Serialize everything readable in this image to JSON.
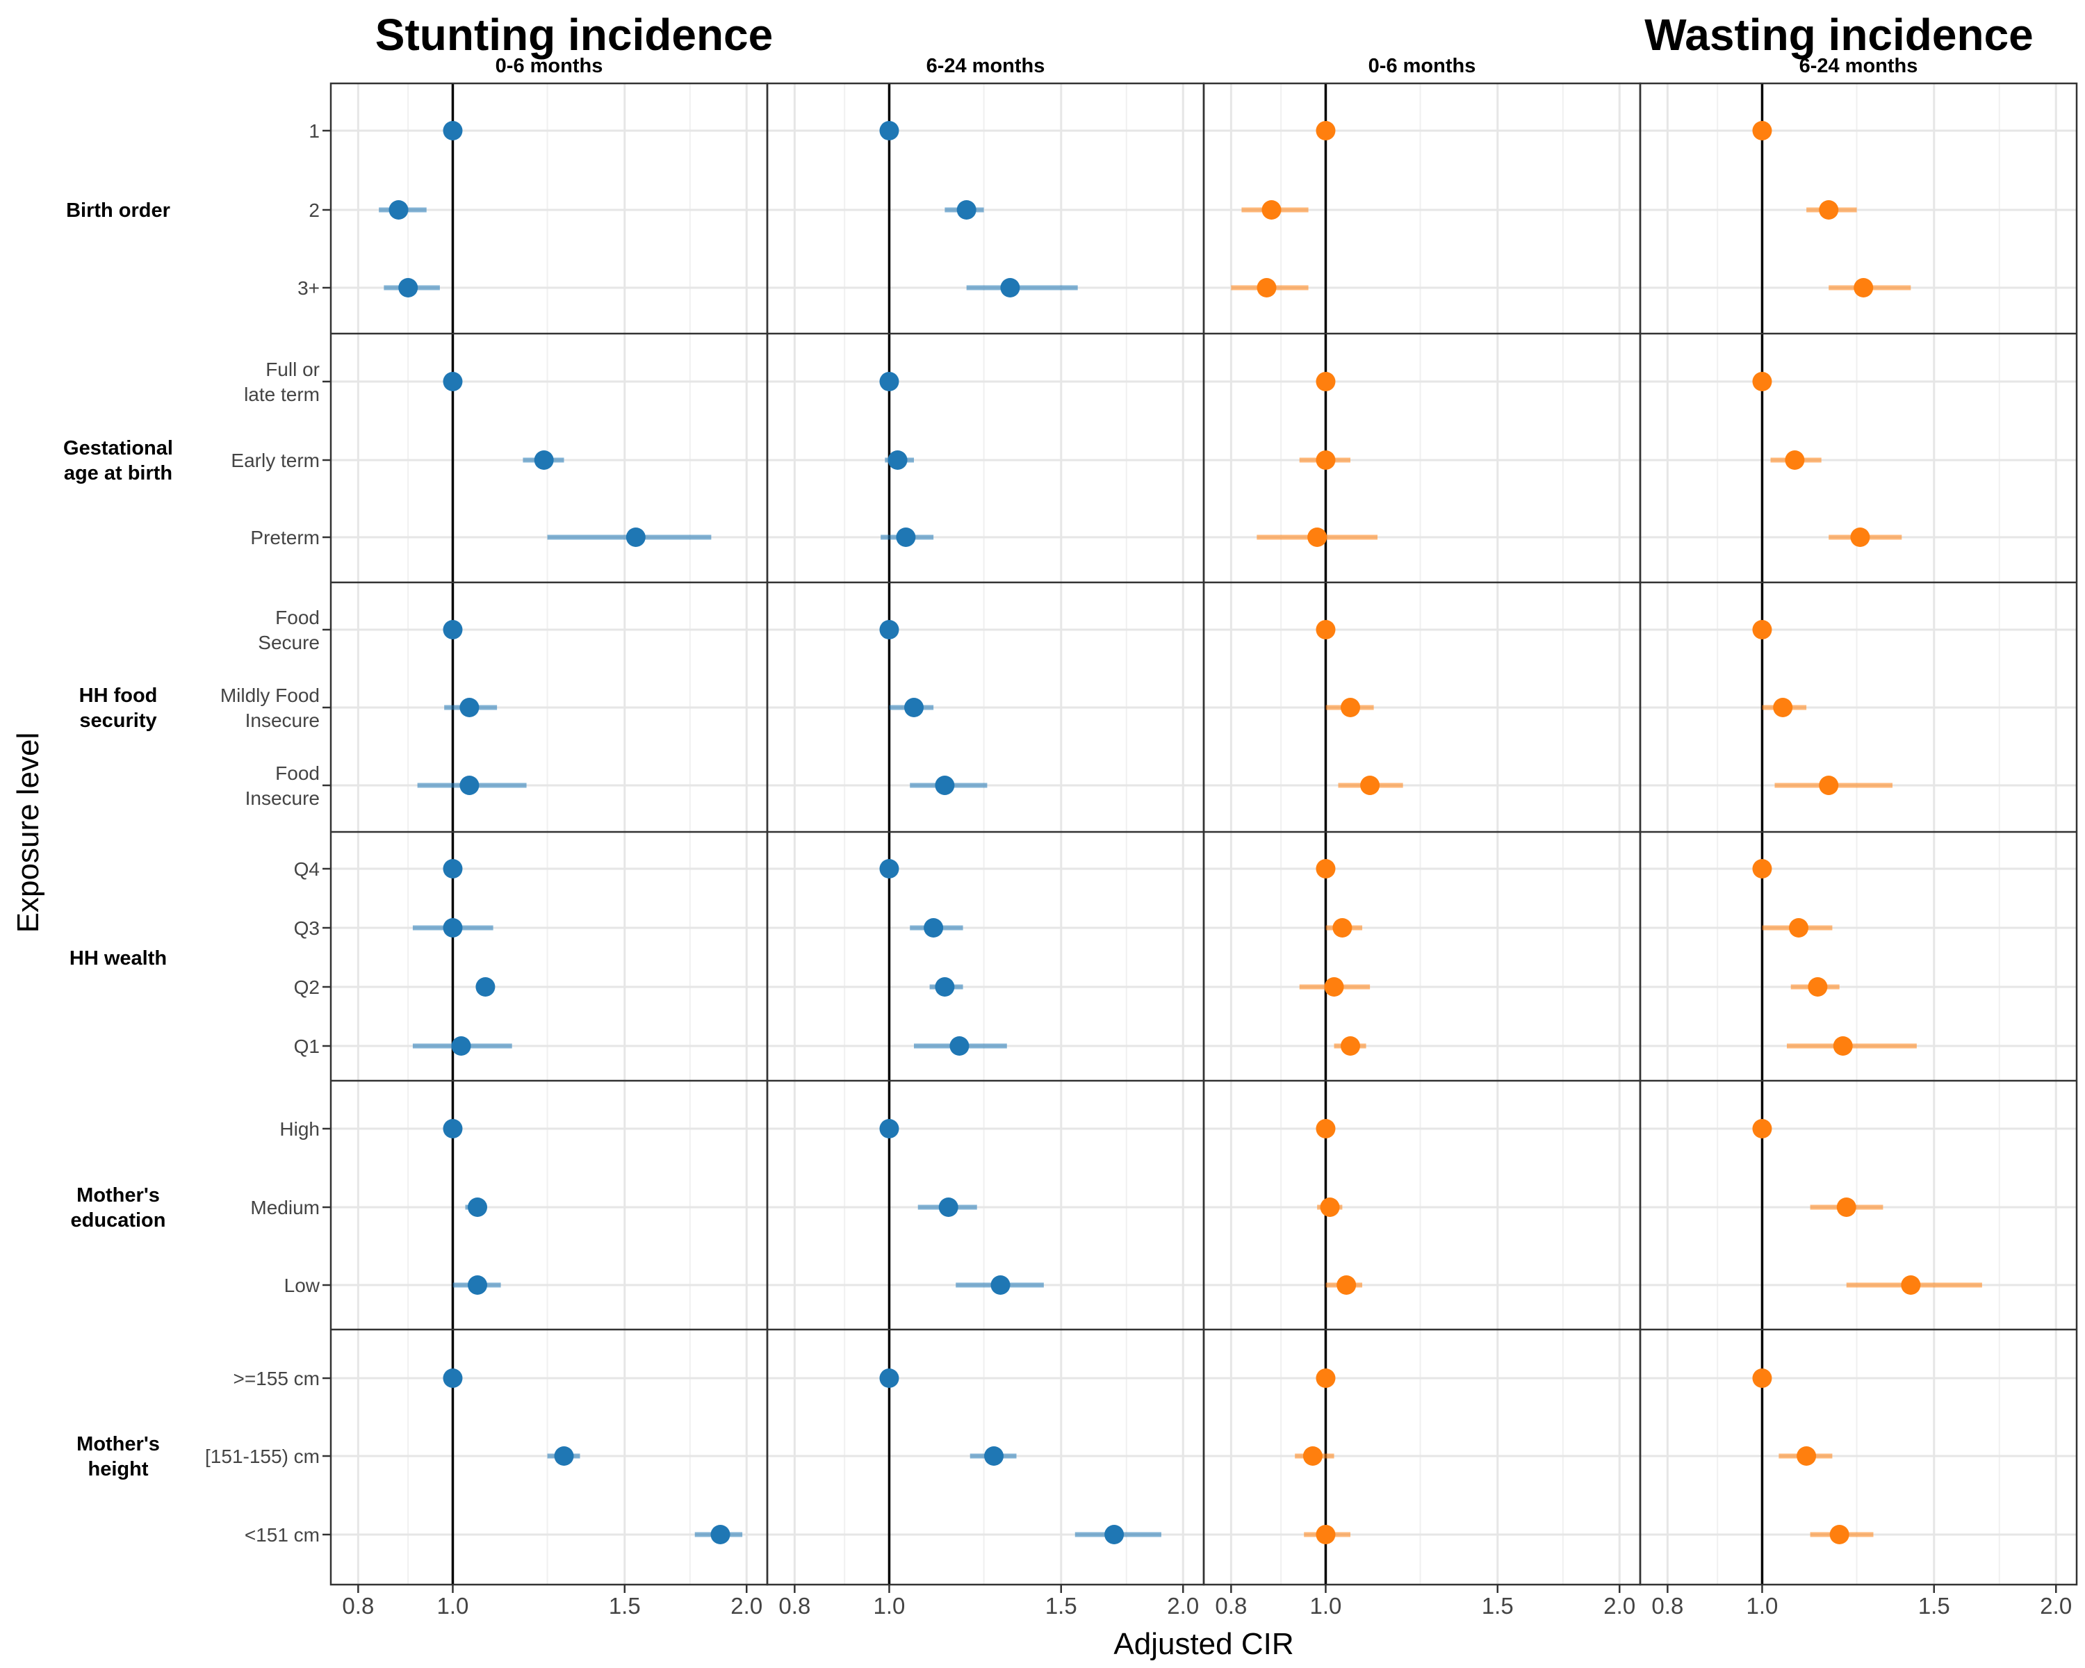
{
  "chart_data": {
    "type": "scatter",
    "subtype": "forest-plot",
    "titles": [
      "Stunting incidence",
      "Wasting incidence"
    ],
    "xlabel": "Adjusted CIR",
    "ylabel": "Exposure level",
    "x_scale": "log",
    "xlim": [
      0.75,
      2.1
    ],
    "x_ticks": [
      0.8,
      1.0,
      1.5,
      2.0
    ],
    "x_tick_labels": [
      "0.8",
      "1.0",
      "1.5",
      "2.0"
    ],
    "reference_line_x": 1.0,
    "grid": true,
    "colors": {
      "stunting": "#1f77b4",
      "wasting": "#ff7f0e",
      "ref_line": "#000000"
    },
    "panels": [
      {
        "outcome": "Stunting incidence",
        "age": "0-6 months",
        "color": "#1f77b4"
      },
      {
        "outcome": "Stunting incidence",
        "age": "6-24 months",
        "color": "#1f77b4"
      },
      {
        "outcome": "Wasting incidence",
        "age": "0-6 months",
        "color": "#ff7f0e"
      },
      {
        "outcome": "Wasting incidence",
        "age": "6-24 months",
        "color": "#ff7f0e"
      }
    ],
    "groups": [
      {
        "name": "Birth order",
        "levels": [
          {
            "label": [
              "1"
            ],
            "est": [
              [
                1.0,
                1.0,
                1.0
              ],
              [
                1.0,
                1.0,
                1.0
              ],
              [
                1.0,
                1.0,
                1.0
              ],
              [
                1.0,
                1.0,
                1.0
              ]
            ]
          },
          {
            "label": [
              "2"
            ],
            "est": [
              [
                0.88,
                0.84,
                0.94
              ],
              [
                1.2,
                1.14,
                1.25
              ],
              [
                0.88,
                0.82,
                0.96
              ],
              [
                1.17,
                1.11,
                1.25
              ]
            ]
          },
          {
            "label": [
              "3+"
            ],
            "est": [
              [
                0.9,
                0.85,
                0.97
              ],
              [
                1.33,
                1.2,
                1.56
              ],
              [
                0.87,
                0.8,
                0.96
              ],
              [
                1.27,
                1.17,
                1.42
              ]
            ]
          }
        ]
      },
      {
        "name": "Gestational age at birth",
        "levels": [
          {
            "label": [
              "Full or",
              "late term"
            ],
            "est": [
              [
                1.0,
                1.0,
                1.0
              ],
              [
                1.0,
                1.0,
                1.0
              ],
              [
                1.0,
                1.0,
                1.0
              ],
              [
                1.0,
                1.0,
                1.0
              ]
            ]
          },
          {
            "label": [
              "Early term"
            ],
            "est": [
              [
                1.24,
                1.18,
                1.3
              ],
              [
                1.02,
                0.99,
                1.06
              ],
              [
                1.0,
                0.94,
                1.06
              ],
              [
                1.08,
                1.02,
                1.15
              ]
            ]
          },
          {
            "label": [
              "Preterm"
            ],
            "est": [
              [
                1.54,
                1.25,
                1.84
              ],
              [
                1.04,
                0.98,
                1.11
              ],
              [
                0.98,
                0.85,
                1.13
              ],
              [
                1.26,
                1.17,
                1.39
              ]
            ]
          }
        ]
      },
      {
        "name": "HH food security",
        "levels": [
          {
            "label": [
              "Food",
              "Secure"
            ],
            "est": [
              [
                1.0,
                1.0,
                1.0
              ],
              [
                1.0,
                1.0,
                1.0
              ],
              [
                1.0,
                1.0,
                1.0
              ],
              [
                1.0,
                1.0,
                1.0
              ]
            ]
          },
          {
            "label": [
              "Mildly Food",
              "Insecure"
            ],
            "est": [
              [
                1.04,
                0.98,
                1.11
              ],
              [
                1.06,
                1.0,
                1.11
              ],
              [
                1.06,
                1.0,
                1.12
              ],
              [
                1.05,
                1.0,
                1.11
              ]
            ]
          },
          {
            "label": [
              "Food",
              "Insecure"
            ],
            "est": [
              [
                1.04,
                0.92,
                1.19
              ],
              [
                1.14,
                1.05,
                1.26
              ],
              [
                1.11,
                1.03,
                1.2
              ],
              [
                1.17,
                1.03,
                1.36
              ]
            ]
          }
        ]
      },
      {
        "name": "HH wealth",
        "levels": [
          {
            "label": [
              "Q4"
            ],
            "est": [
              [
                1.0,
                1.0,
                1.0
              ],
              [
                1.0,
                1.0,
                1.0
              ],
              [
                1.0,
                1.0,
                1.0
              ],
              [
                1.0,
                1.0,
                1.0
              ]
            ]
          },
          {
            "label": [
              "Q3"
            ],
            "est": [
              [
                1.0,
                0.91,
                1.1
              ],
              [
                1.11,
                1.05,
                1.19
              ],
              [
                1.04,
                1.0,
                1.09
              ],
              [
                1.09,
                1.0,
                1.18
              ]
            ]
          },
          {
            "label": [
              "Q2"
            ],
            "est": [
              [
                1.08,
                1.08,
                1.08
              ],
              [
                1.14,
                1.1,
                1.19
              ],
              [
                1.02,
                0.94,
                1.11
              ],
              [
                1.14,
                1.07,
                1.2
              ]
            ]
          },
          {
            "label": [
              "Q1"
            ],
            "est": [
              [
                1.02,
                0.91,
                1.15
              ],
              [
                1.18,
                1.06,
                1.32
              ],
              [
                1.06,
                1.02,
                1.1
              ],
              [
                1.21,
                1.06,
                1.44
              ]
            ]
          }
        ]
      },
      {
        "name": "Mother's education",
        "levels": [
          {
            "label": [
              "High"
            ],
            "est": [
              [
                1.0,
                1.0,
                1.0
              ],
              [
                1.0,
                1.0,
                1.0
              ],
              [
                1.0,
                1.0,
                1.0
              ],
              [
                1.0,
                1.0,
                1.0
              ]
            ]
          },
          {
            "label": [
              "Medium"
            ],
            "est": [
              [
                1.06,
                1.03,
                1.08
              ],
              [
                1.15,
                1.07,
                1.23
              ],
              [
                1.01,
                0.98,
                1.04
              ],
              [
                1.22,
                1.12,
                1.33
              ]
            ]
          },
          {
            "label": [
              "Low"
            ],
            "est": [
              [
                1.06,
                1.0,
                1.12
              ],
              [
                1.3,
                1.17,
                1.44
              ],
              [
                1.05,
                1.0,
                1.09
              ],
              [
                1.42,
                1.22,
                1.68
              ]
            ]
          }
        ]
      },
      {
        "name": "Mother's height",
        "levels": [
          {
            "label": [
              ">=155 cm"
            ],
            "est": [
              [
                1.0,
                1.0,
                1.0
              ],
              [
                1.0,
                1.0,
                1.0
              ],
              [
                1.0,
                1.0,
                1.0
              ],
              [
                1.0,
                1.0,
                1.0
              ]
            ]
          },
          {
            "label": [
              "[151-155) cm"
            ],
            "est": [
              [
                1.3,
                1.25,
                1.35
              ],
              [
                1.28,
                1.21,
                1.35
              ],
              [
                0.97,
                0.93,
                1.02
              ],
              [
                1.11,
                1.04,
                1.18
              ]
            ]
          },
          {
            "label": [
              "<151 cm"
            ],
            "est": [
              [
                1.88,
                1.77,
                1.98
              ],
              [
                1.7,
                1.55,
                1.9
              ],
              [
                1.0,
                0.95,
                1.06
              ],
              [
                1.2,
                1.12,
                1.3
              ]
            ]
          }
        ]
      }
    ]
  }
}
